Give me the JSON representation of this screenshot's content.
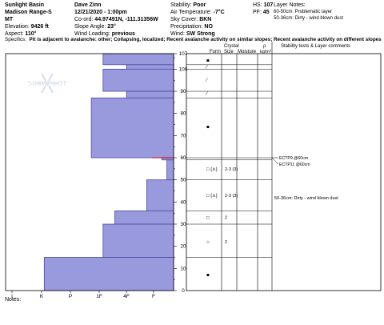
{
  "header": {
    "location": "Sunlight Basin",
    "range": "Madison Range-S",
    "state": "MT",
    "elevation_label": "Elevation:",
    "elevation": "9426 ft",
    "aspect_label": "Aspect:",
    "aspect": "110°",
    "observer": "Dave Zinn",
    "datetime": "12/21/2020 - 1:00pm",
    "coord_label": "Co-ord:",
    "coords": "44.97491N, -111.31356W",
    "slope_label": "Slope Angle:",
    "slope": "23°",
    "wind_loading_label": "Wind Loading:",
    "wind_loading": "previous",
    "stability_label": "Stability:",
    "stability": "Poor",
    "air_temp_label": "Air Temperature:",
    "air_temp": "-7°C",
    "sky_label": "Sky Cover:",
    "sky": "BKN",
    "precip_label": "Precipitation:",
    "precip": "NO",
    "wind_label": "Wind:",
    "wind": "SW Strong",
    "hs_label": "HS:",
    "hs": "107",
    "pf_label": "PF:",
    "pf": "45",
    "layer_notes_label": "Layer Notes:",
    "layer_notes": [
      "60-50cm: Problematic layer",
      "50-36cm: Dirty - wind blown dust"
    ]
  },
  "specifics": {
    "label": "Specifics:",
    "text": "Pit is adjacent to avalanche: other; Collapsing, localized; Recent avalanche activity on similar slopes; Recent avalanche activity on different slopes"
  },
  "notes_label": "Notes:",
  "watermark": "SNOWPILOT",
  "chart_data": {
    "type": "snow-profile",
    "hardness_axis": [
      "I",
      "K",
      "P",
      "1F",
      "4F",
      "F"
    ],
    "depth_axis": [
      0,
      10,
      20,
      30,
      40,
      50,
      60,
      70,
      80,
      90,
      100,
      107
    ],
    "ylim": [
      0,
      107
    ],
    "column_headers": {
      "form": "Form",
      "crystal": "Crystal",
      "size": "Size",
      "moisture": "Moisture",
      "density": "ρ",
      "density_unit": "kg/m³",
      "tests": "Stability tests & Layer comments"
    },
    "layers": [
      {
        "top": 107,
        "bottom": 102,
        "hardness": 0.42
      },
      {
        "top": 102,
        "bottom": 100,
        "hardness": 0.28
      },
      {
        "top": 100,
        "bottom": 90,
        "hardness": 0.42
      },
      {
        "top": 90,
        "bottom": 87,
        "hardness": 0.28
      },
      {
        "top": 87,
        "bottom": 60,
        "hardness": 0.49
      },
      {
        "top": 60,
        "bottom": 59,
        "hardness": 0.07
      },
      {
        "top": 59,
        "bottom": 50,
        "hardness": 0.04
      },
      {
        "top": 50,
        "bottom": 36,
        "hardness": 0.16
      },
      {
        "top": 36,
        "bottom": 30,
        "hardness": 0.35
      },
      {
        "top": 30,
        "bottom": 15,
        "hardness": 0.42
      },
      {
        "top": 15,
        "bottom": 0,
        "hardness": 0.77
      }
    ],
    "grain_rows": [
      {
        "depth": 104,
        "form": "■",
        "size": "",
        "moisture": ""
      },
      {
        "depth": 101,
        "form": "⁄",
        "size": "",
        "moisture": ""
      },
      {
        "depth": 95,
        "form": "⁄",
        "size": "",
        "moisture": ""
      },
      {
        "depth": 89,
        "form": "⁄",
        "size": "",
        "moisture": ""
      },
      {
        "depth": 74,
        "form": "■",
        "size": "",
        "moisture": ""
      },
      {
        "depth": 55,
        "form": "□ (⋏)",
        "size": "2-3 (3)",
        "moisture": ""
      },
      {
        "depth": 43,
        "form": "□ (⋏)",
        "size": "2-3 (3)",
        "moisture": ""
      },
      {
        "depth": 33,
        "form": "□",
        "size": "2",
        "moisture": ""
      },
      {
        "depth": 22,
        "form": "⌂",
        "size": "2",
        "moisture": ""
      },
      {
        "depth": 7,
        "form": "■",
        "size": "",
        "moisture": ""
      }
    ],
    "tests": [
      {
        "depth": 60,
        "text": "ECTP9 @60cm"
      },
      {
        "depth": 60,
        "text": "ECTP11 @60cm"
      }
    ],
    "layer_comment": {
      "depth": 43,
      "text": "50-36cm: Dirty - wind blown dust"
    },
    "colors": {
      "bar_fill": "#9999dd",
      "bar_stroke": "#4a4aa0",
      "weak_layer": "#cc0000"
    }
  }
}
